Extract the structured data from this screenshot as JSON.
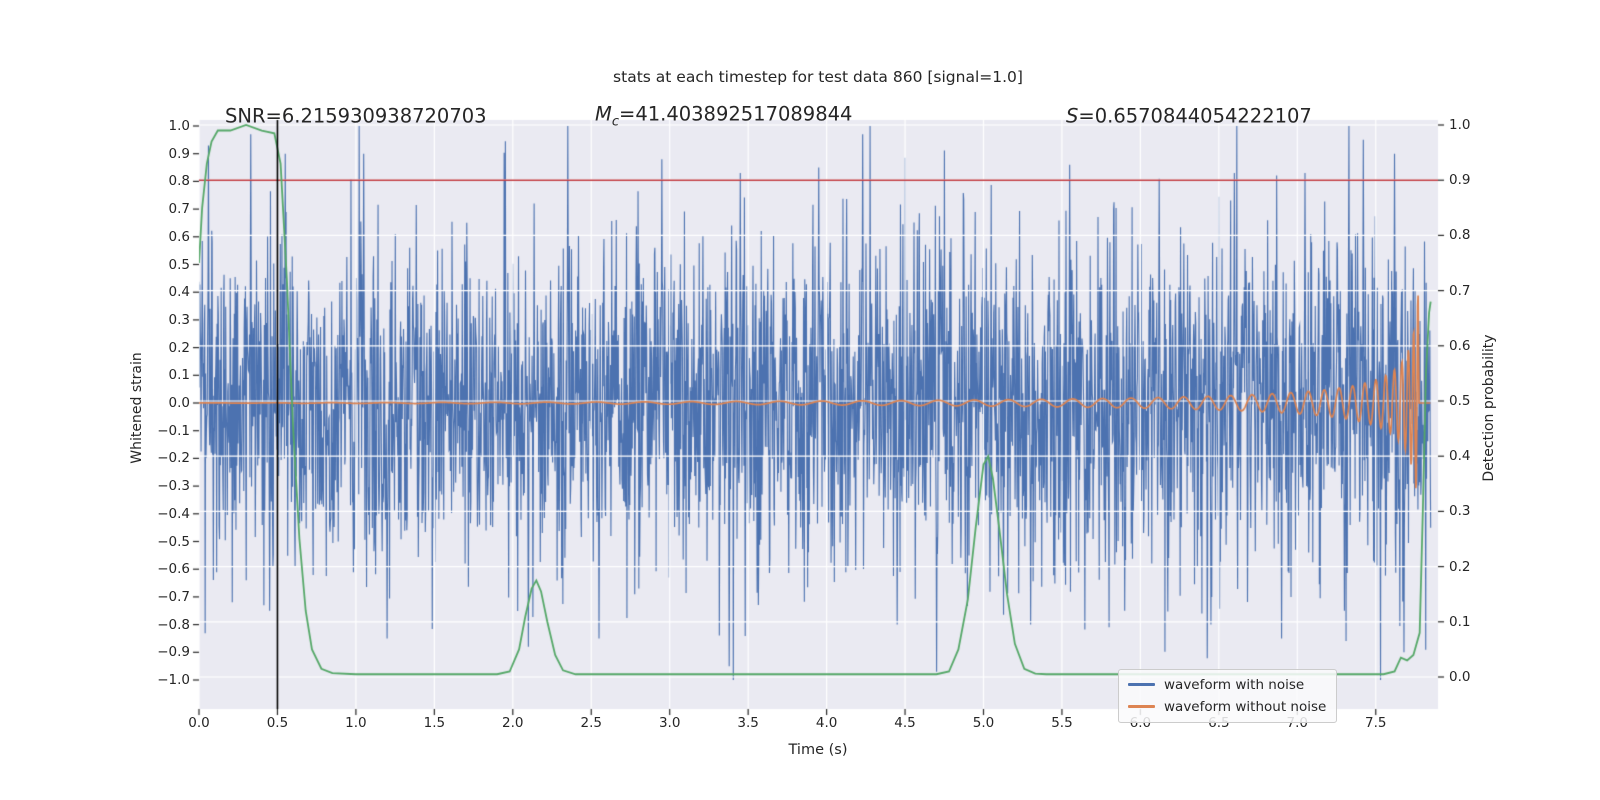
{
  "annotations": {
    "snr": "SNR=6.215930938720703",
    "mc_symbol": "M",
    "mc_subscript": "c",
    "mc_value": "=41.403892517089844",
    "s_symbol": "S",
    "s_value": "=0.6570844054222107"
  },
  "chart_data": {
    "type": "line",
    "title": "stats at each timestep for test data 860 [signal=1.0]",
    "xlabel": "Time (s)",
    "ylabel_left": "Whitened strain",
    "ylabel_right": "Detection probability",
    "xlim": [
      0.0,
      7.9
    ],
    "ylim_left": [
      -1.0,
      1.0
    ],
    "ylim_right": [
      0.0,
      1.0
    ],
    "grid": "white-on-lavender",
    "background_color": "#EAEAF2",
    "grid_color": "#FFFFFF",
    "x_tick_values": [
      0.0,
      0.5,
      1.0,
      1.5,
      2.0,
      2.5,
      3.0,
      3.5,
      4.0,
      4.5,
      5.0,
      5.5,
      6.0,
      6.5,
      7.0,
      7.5
    ],
    "x_tick_labels": [
      "0.0",
      "0.5",
      "1.0",
      "1.5",
      "2.0",
      "2.5",
      "3.0",
      "3.5",
      "4.0",
      "4.5",
      "5.0",
      "5.5",
      "6.0",
      "6.5",
      "7.0",
      "7.5"
    ],
    "left_tick_values": [
      1.0,
      0.9,
      0.8,
      0.7,
      0.6,
      0.5,
      0.4,
      0.3,
      0.2,
      0.1,
      0.0,
      -0.1,
      -0.2,
      -0.3,
      -0.4,
      -0.5,
      -0.6,
      -0.7,
      -0.8,
      -0.9,
      -1.0
    ],
    "left_tick_labels": [
      "1.0",
      "0.9",
      "0.8",
      "0.7",
      "0.6",
      "0.5",
      "0.4",
      "0.3",
      "0.2",
      "0.1",
      "0.0",
      "−0.1",
      "−0.2",
      "−0.3",
      "−0.4",
      "−0.5",
      "−0.6",
      "−0.7",
      "−0.8",
      "−0.9",
      "−1.0"
    ],
    "right_tick_values": [
      1.0,
      0.9,
      0.8,
      0.7,
      0.6,
      0.5,
      0.4,
      0.3,
      0.2,
      0.1,
      0.0
    ],
    "right_tick_labels": [
      "1.0",
      "0.9",
      "0.8",
      "0.7",
      "0.6",
      "0.5",
      "0.4",
      "0.3",
      "0.2",
      "0.1",
      "0.0"
    ],
    "series": [
      {
        "name": "waveform with noise",
        "axis": "left",
        "color": "#4C72B0",
        "kind": "gaussian-noise",
        "n": 3000,
        "t_start": 0.0,
        "t_end": 7.85,
        "sd": 0.31,
        "clip": [
          -1.0,
          1.0
        ],
        "seed": 42,
        "notable_peaks": [
          [
            0.06,
            0.93
          ],
          [
            0.33,
            0.97
          ],
          [
            0.55,
            0.9
          ],
          [
            1.05,
            0.9
          ],
          [
            2.35,
            1.0
          ],
          [
            2.95,
            0.88
          ],
          [
            3.45,
            0.83
          ],
          [
            3.95,
            0.85
          ],
          [
            4.23,
            0.97
          ],
          [
            5.55,
            0.86
          ],
          [
            6.12,
            0.81
          ],
          [
            6.6,
            0.83
          ],
          [
            7.05,
            0.83
          ],
          [
            7.42,
            0.95
          ],
          [
            7.62,
            0.9
          ],
          [
            0.45,
            -0.75
          ],
          [
            1.2,
            -0.85
          ],
          [
            2.1,
            -0.88
          ],
          [
            2.55,
            -0.85
          ],
          [
            3.38,
            -0.95
          ],
          [
            4.45,
            -0.8
          ],
          [
            4.7,
            -0.97
          ],
          [
            5.3,
            -0.8
          ],
          [
            5.9,
            -0.75
          ],
          [
            6.45,
            -0.8
          ],
          [
            6.9,
            -0.85
          ],
          [
            7.3,
            -0.75
          ],
          [
            7.68,
            -0.9
          ]
        ]
      },
      {
        "name": "waveform without noise",
        "axis": "left",
        "color": "#DD8452",
        "kind": "chirp",
        "t_start": 0.0,
        "t_end": 7.85,
        "t_merger": 7.775,
        "amp_coef": 0.0433,
        "amp_pow": 0.65,
        "amp_offset": 0.011,
        "amp_max": 0.42,
        "freq_coef": 8.0,
        "freq_pow": 0.55
      },
      {
        "name": "detection probability",
        "axis": "right",
        "color": "#55A868",
        "kind": "polyline",
        "points": [
          [
            0.0,
            0.75
          ],
          [
            0.02,
            0.85
          ],
          [
            0.05,
            0.93
          ],
          [
            0.08,
            0.97
          ],
          [
            0.12,
            0.99
          ],
          [
            0.2,
            0.99
          ],
          [
            0.3,
            1.0
          ],
          [
            0.4,
            0.99
          ],
          [
            0.48,
            0.985
          ],
          [
            0.52,
            0.93
          ],
          [
            0.56,
            0.72
          ],
          [
            0.6,
            0.45
          ],
          [
            0.64,
            0.25
          ],
          [
            0.68,
            0.12
          ],
          [
            0.72,
            0.05
          ],
          [
            0.78,
            0.015
          ],
          [
            0.85,
            0.007
          ],
          [
            1.0,
            0.005
          ],
          [
            1.9,
            0.005
          ],
          [
            1.98,
            0.01
          ],
          [
            2.04,
            0.05
          ],
          [
            2.08,
            0.11
          ],
          [
            2.12,
            0.16
          ],
          [
            2.15,
            0.175
          ],
          [
            2.18,
            0.155
          ],
          [
            2.22,
            0.1
          ],
          [
            2.27,
            0.04
          ],
          [
            2.32,
            0.012
          ],
          [
            2.4,
            0.005
          ],
          [
            4.7,
            0.005
          ],
          [
            4.78,
            0.01
          ],
          [
            4.84,
            0.05
          ],
          [
            4.9,
            0.14
          ],
          [
            4.95,
            0.27
          ],
          [
            5.0,
            0.385
          ],
          [
            5.03,
            0.4
          ],
          [
            5.06,
            0.36
          ],
          [
            5.1,
            0.27
          ],
          [
            5.15,
            0.15
          ],
          [
            5.2,
            0.06
          ],
          [
            5.26,
            0.015
          ],
          [
            5.33,
            0.006
          ],
          [
            5.4,
            0.005
          ],
          [
            7.55,
            0.005
          ],
          [
            7.62,
            0.01
          ],
          [
            7.66,
            0.035
          ],
          [
            7.7,
            0.03
          ],
          [
            7.74,
            0.04
          ],
          [
            7.78,
            0.08
          ],
          [
            7.8,
            0.3
          ],
          [
            7.82,
            0.55
          ],
          [
            7.84,
            0.66
          ],
          [
            7.85,
            0.68
          ]
        ]
      }
    ],
    "ref_lines": {
      "threshold_hline": {
        "axis": "right",
        "value": 0.9,
        "color": "#C23B40"
      },
      "zero_strain_hline": {
        "axis": "left",
        "value": 0.0,
        "color": "#DD8452"
      },
      "event_vline": {
        "axis": "x",
        "value": 0.5,
        "color": "#000000"
      }
    },
    "legend": {
      "position": "lower-right",
      "items": [
        {
          "label": "waveform with noise",
          "color": "#4C72B0"
        },
        {
          "label": "waveform without noise",
          "color": "#DD8452"
        }
      ]
    }
  }
}
